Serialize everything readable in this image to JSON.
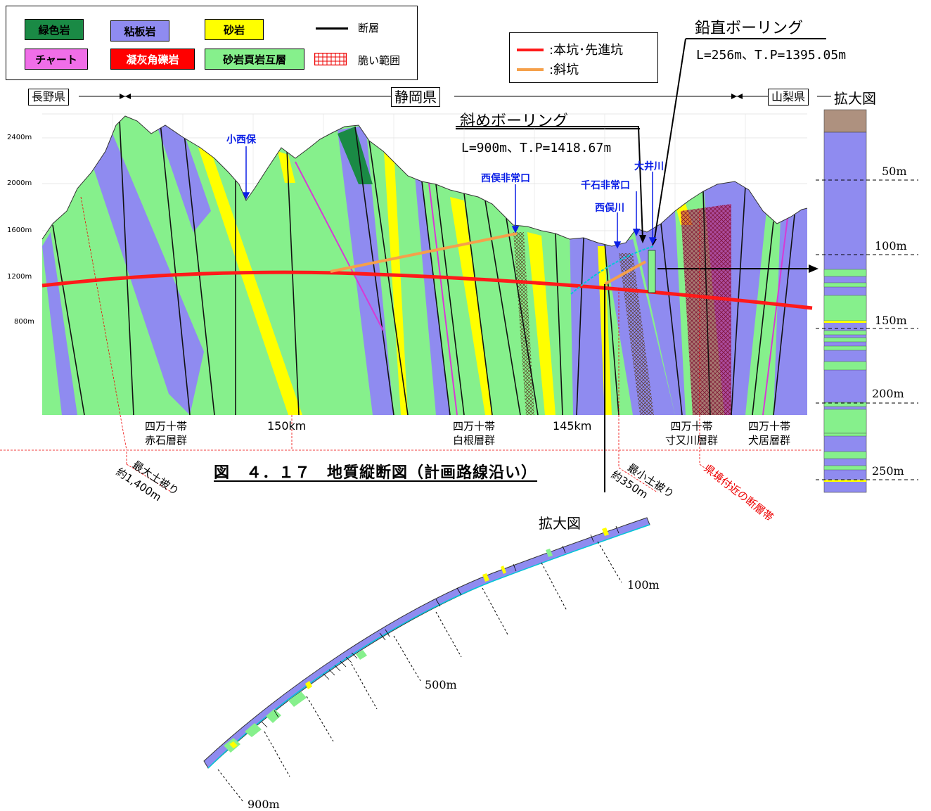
{
  "legend": {
    "items": [
      {
        "label": "緑色岩",
        "color": "#1a8a45",
        "text_color": "#000000"
      },
      {
        "label": "粘板岩",
        "color": "#8f8bf0",
        "text_color": "#000000"
      },
      {
        "label": "砂岩",
        "color": "#ffff00",
        "text_color": "#000000"
      },
      {
        "label": "チャート",
        "color": "#f06ee8",
        "text_color": "#000000"
      },
      {
        "label": "凝灰角礫岩",
        "color": "#ff0000",
        "text_color": "#ffffff"
      },
      {
        "label": "砂岩頁岩互層",
        "color": "#86f08c",
        "text_color": "#000000"
      }
    ],
    "fault_label": "断層",
    "brittle_label": "脆い範囲"
  },
  "route_legend": {
    "main_label": ":本坑･先進坑",
    "incline_label": ":斜坑",
    "main_color": "#ff1a1a",
    "incline_color": "#f5a04a"
  },
  "prefectures": {
    "nagano": "長野県",
    "shizuoka": "静岡県",
    "yamanashi": "山梨県"
  },
  "vertical_boring": {
    "title": "鉛直ボーリング",
    "spec": "L=256m、T.P=1395.05m"
  },
  "oblique_boring": {
    "title": "斜めボーリング",
    "spec": "L=900m、T.P=1418.67m"
  },
  "elevation_ticks": [
    "2400m",
    "2000m",
    "1600m",
    "1200m",
    "800m"
  ],
  "places": {
    "konishimata": "小西保",
    "nishimata_exit": "西俣非常口",
    "senkoku_exit": "千石非常口",
    "nishimata_river": "西俣川",
    "oi_river": "大井川"
  },
  "km_labels": {
    "km150": "150km",
    "km145": "145km"
  },
  "zones": {
    "akaishi": [
      "四万十帯",
      "赤石層群"
    ],
    "shirane": [
      "四万十帯",
      "白根層群"
    ],
    "sunmata": [
      "四万十帯",
      "寸又川層群"
    ],
    "inui": [
      "四万十帯",
      "犬居層群"
    ]
  },
  "figure_title": "図　４．１７　地質縦断図（計画路線沿い）",
  "annotations": {
    "max_cover": [
      "最大土被り",
      "約1,400m"
    ],
    "min_cover": [
      "最小土被り",
      "約350m"
    ],
    "fault_zone": "県境付近の断層帯"
  },
  "enlarged_label": "拡大図",
  "vertical_depths": [
    "50m",
    "100m",
    "150m",
    "200m",
    "250m"
  ],
  "oblique_depths": [
    "100m",
    "500m",
    "900m"
  ]
}
